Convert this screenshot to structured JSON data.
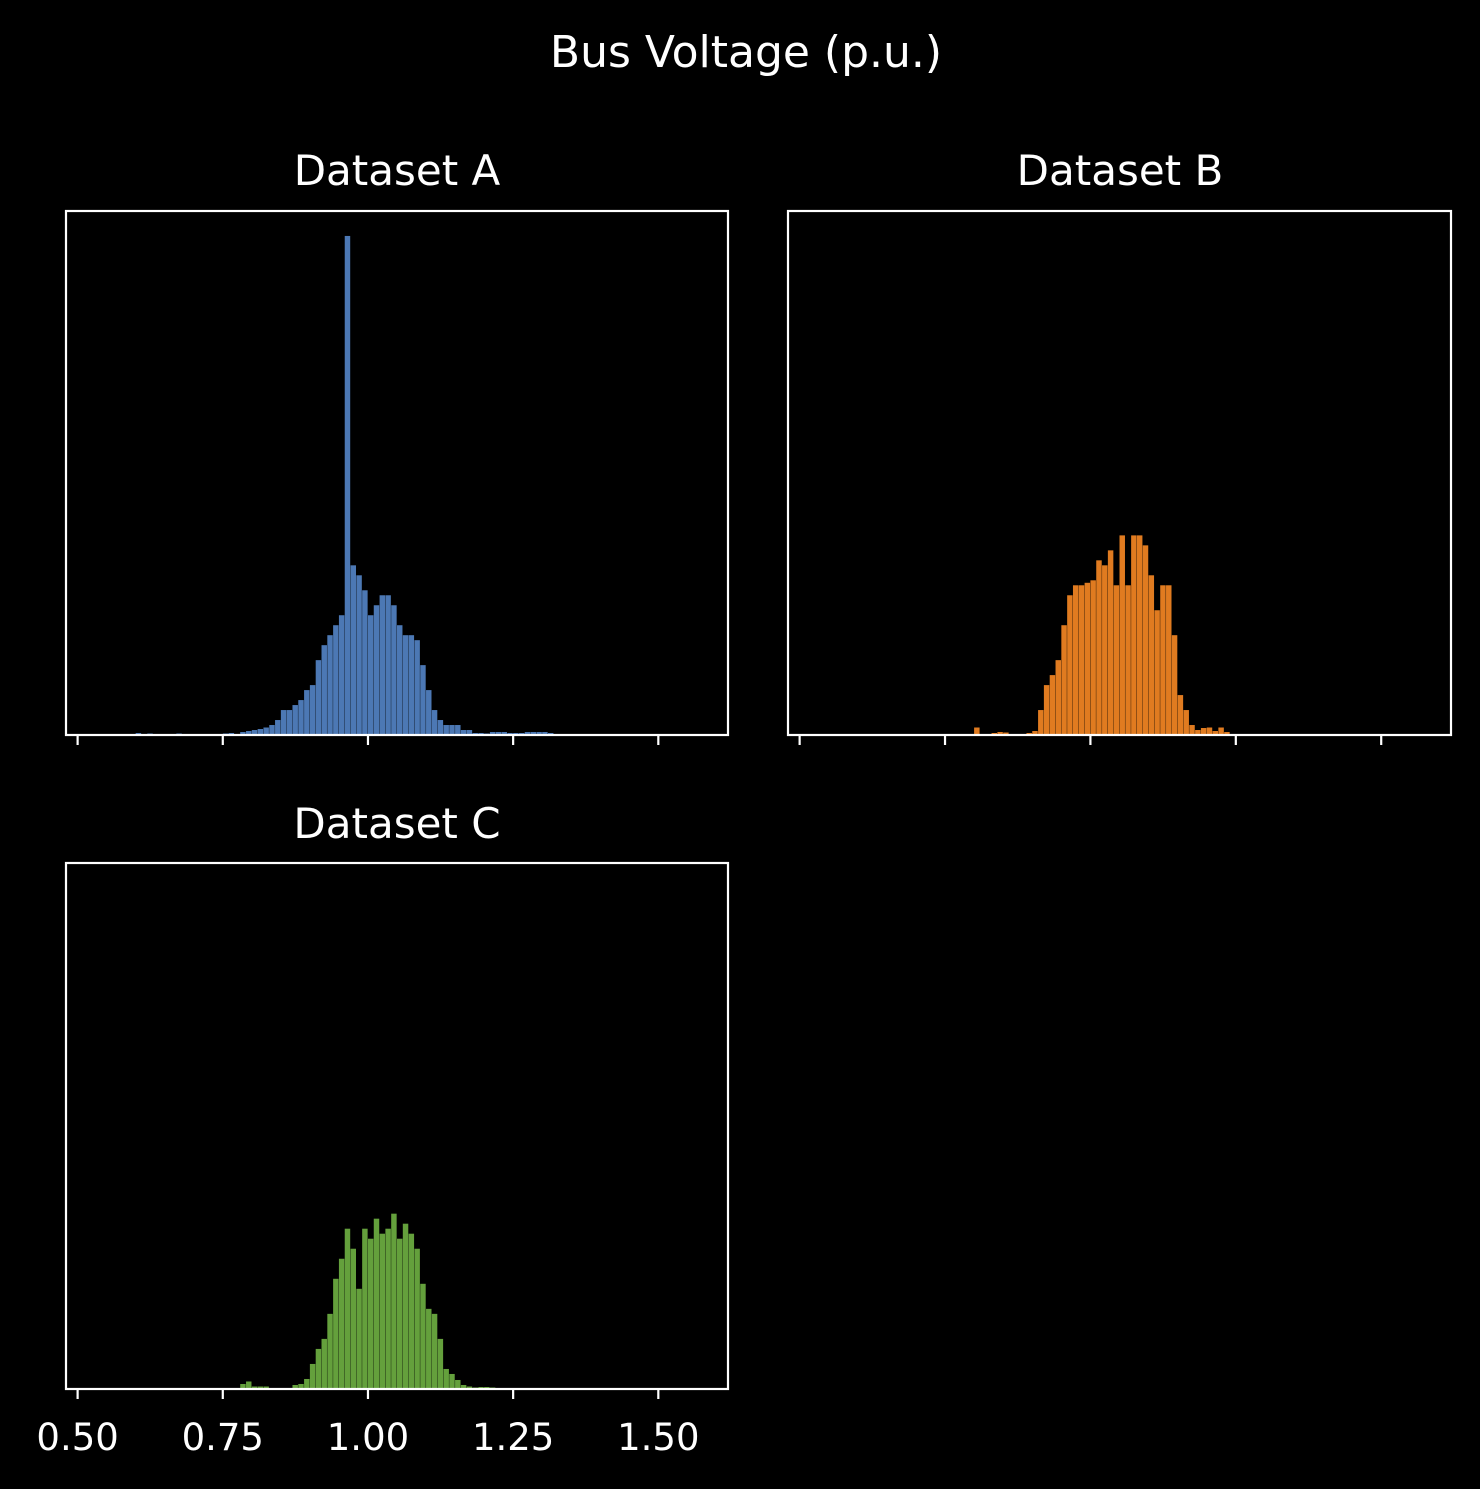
{
  "figure": {
    "title": "Bus Voltage (p.u.)",
    "background": "#000000",
    "axis_color": "#ffffff"
  },
  "chart_data": [
    {
      "type": "bar",
      "subtype": "histogram",
      "title": "Dataset A",
      "color": "#4c78b4",
      "xlim": [
        0.48,
        1.62
      ],
      "ylim": [
        0,
        1.05
      ],
      "xticks": [
        0.5,
        0.75,
        1.0,
        1.25,
        1.5
      ],
      "show_xticklabels": false,
      "show_yaxis": false,
      "bins": {
        "start": 0.6,
        "width": 0.01,
        "counts": [
          0.004,
          0.002,
          0.003,
          0.002,
          0,
          0,
          0.002,
          0.003,
          0,
          0,
          0,
          0,
          0,
          0.002,
          0.002,
          0.003,
          0.004,
          0,
          0.006,
          0.008,
          0.01,
          0.012,
          0.015,
          0.02,
          0.03,
          0.05,
          0.05,
          0.06,
          0.07,
          0.09,
          0.1,
          0.15,
          0.18,
          0.2,
          0.22,
          0.24,
          1.0,
          0.34,
          0.32,
          0.29,
          0.24,
          0.26,
          0.28,
          0.28,
          0.26,
          0.22,
          0.2,
          0.2,
          0.19,
          0.14,
          0.09,
          0.05,
          0.03,
          0.02,
          0.02,
          0.02,
          0.01,
          0.01,
          0.004,
          0.004,
          0.003,
          0.006,
          0.006,
          0.006,
          0.004,
          0.004,
          0.004,
          0.006,
          0.006,
          0.006,
          0.006,
          0.004
        ]
      }
    },
    {
      "type": "bar",
      "subtype": "histogram",
      "title": "Dataset B",
      "color": "#e07b20",
      "xlim": [
        0.48,
        1.62
      ],
      "ylim": [
        0,
        1.05
      ],
      "xticks": [
        0.5,
        0.75,
        1.0,
        1.25,
        1.5
      ],
      "show_xticklabels": false,
      "show_yaxis": false,
      "bins": {
        "start": 0.8,
        "width": 0.01,
        "counts": [
          0.015,
          0,
          0,
          0.004,
          0.006,
          0.005,
          0,
          0,
          0,
          0.004,
          0.008,
          0.05,
          0.1,
          0.12,
          0.15,
          0.22,
          0.28,
          0.3,
          0.3,
          0.305,
          0.31,
          0.35,
          0.34,
          0.37,
          0.3,
          0.4,
          0.3,
          0.4,
          0.4,
          0.38,
          0.32,
          0.25,
          0.3,
          0.3,
          0.2,
          0.08,
          0.05,
          0.02,
          0.01,
          0.014,
          0.015,
          0.008,
          0.015,
          0.006
        ]
      }
    },
    {
      "type": "bar",
      "subtype": "histogram",
      "title": "Dataset C",
      "color": "#64a03c",
      "xlim": [
        0.48,
        1.62
      ],
      "ylim": [
        0,
        1.05
      ],
      "xticks": [
        0.5,
        0.75,
        1.0,
        1.25,
        1.5
      ],
      "xtick_labels": [
        "0.50",
        "0.75",
        "1.00",
        "1.25",
        "1.50"
      ],
      "show_xticklabels": true,
      "show_yaxis": false,
      "bins": {
        "start": 0.78,
        "width": 0.01,
        "counts": [
          0.01,
          0.015,
          0.005,
          0.005,
          0.005,
          0.002,
          0,
          0,
          0,
          0.008,
          0.01,
          0.02,
          0.05,
          0.08,
          0.1,
          0.15,
          0.22,
          0.26,
          0.32,
          0.28,
          0.2,
          0.32,
          0.3,
          0.34,
          0.31,
          0.32,
          0.35,
          0.3,
          0.33,
          0.31,
          0.28,
          0.21,
          0.16,
          0.15,
          0.1,
          0.04,
          0.03,
          0.018,
          0.008,
          0.005,
          0.003,
          0.004,
          0.004,
          0.003
        ]
      }
    }
  ]
}
